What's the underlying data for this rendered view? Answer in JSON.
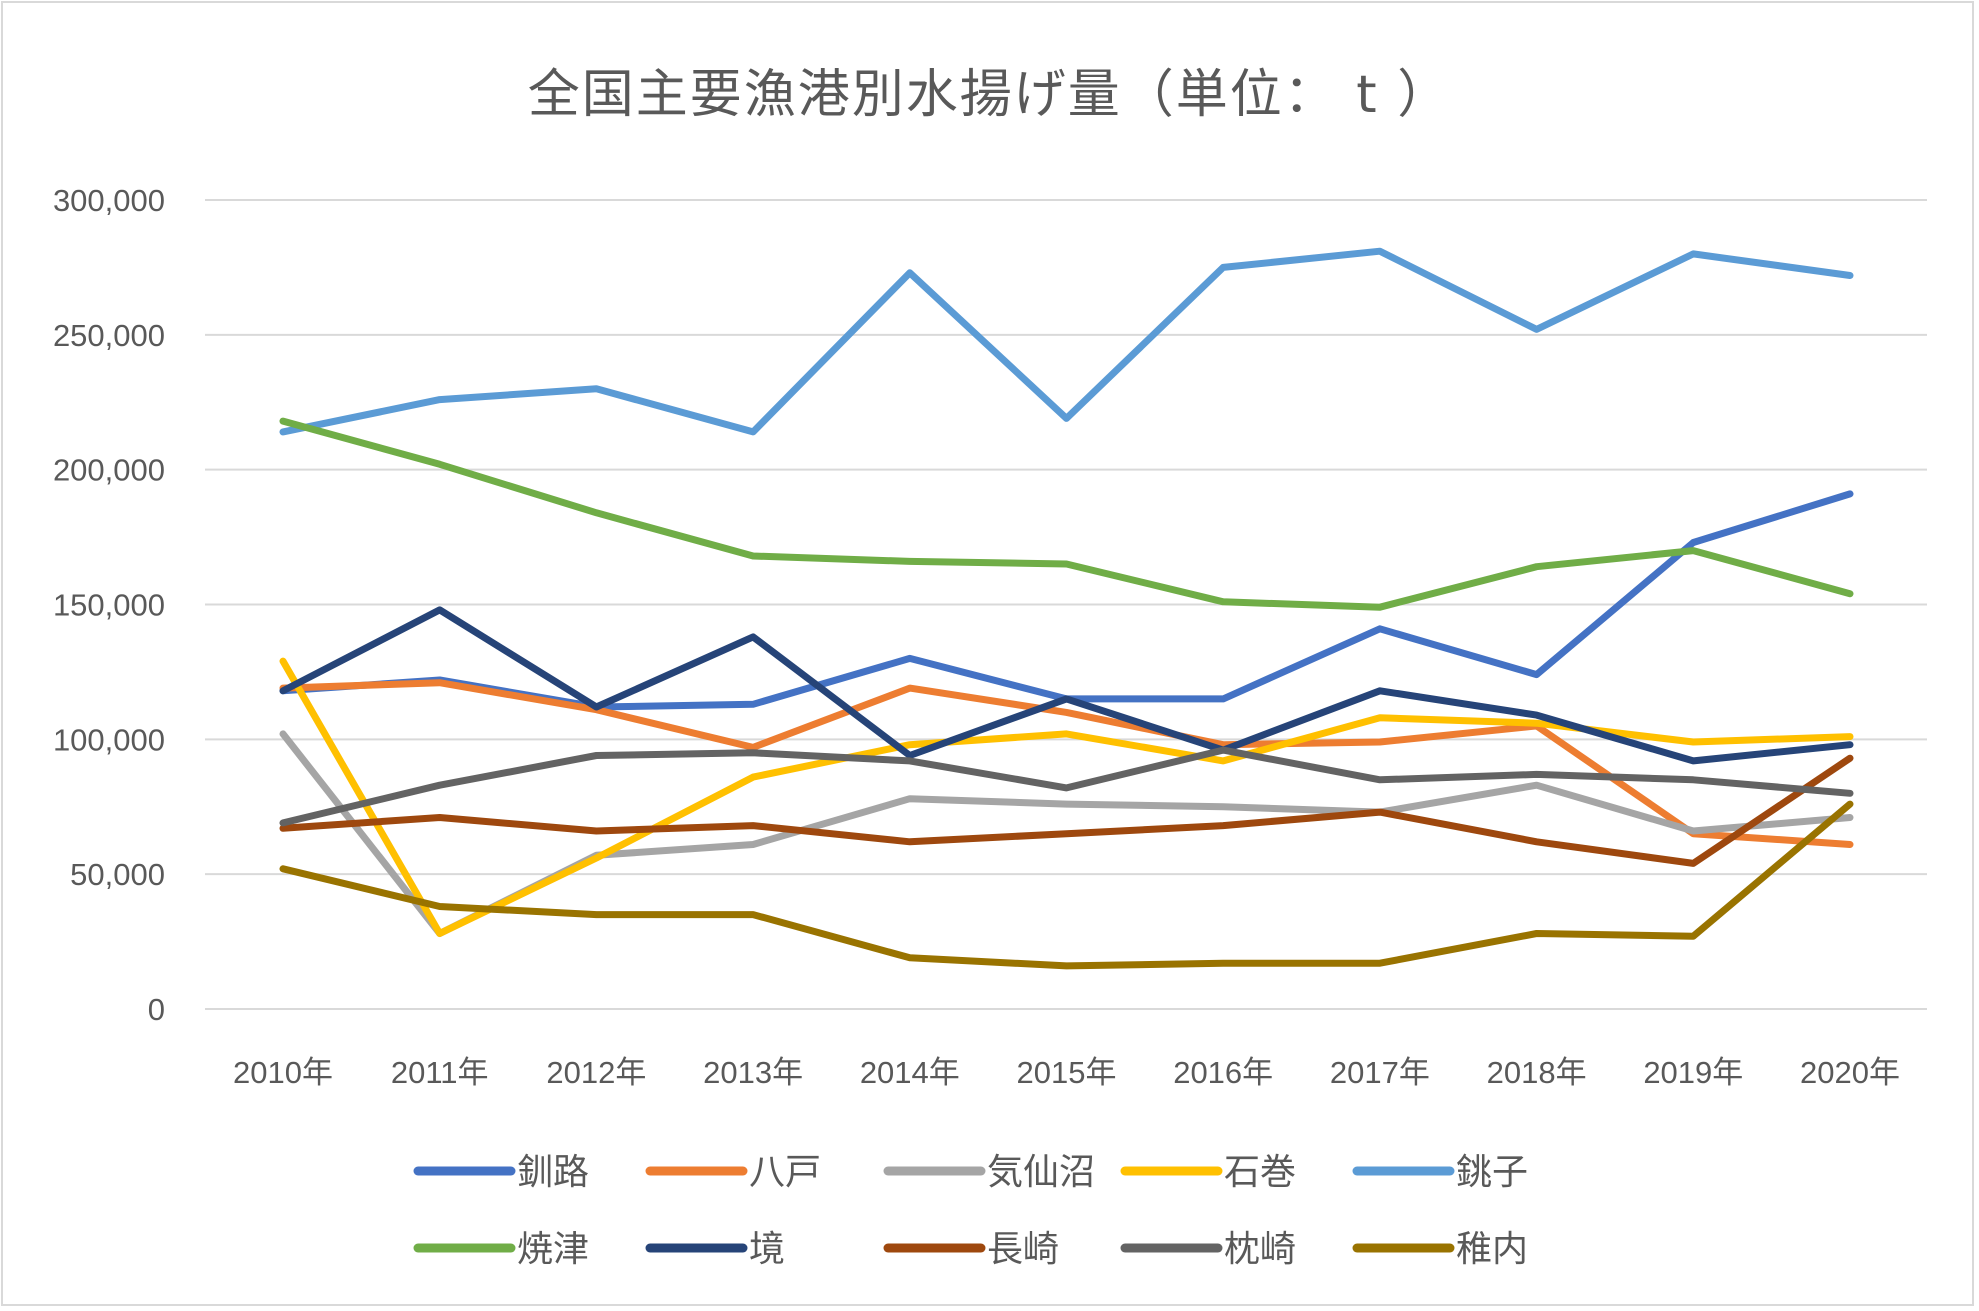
{
  "chart_data": {
    "type": "line",
    "title": "全国主要漁港別水揚げ量（単位： t ）",
    "xlabel": "",
    "ylabel": "",
    "categories": [
      "2010年",
      "2011年",
      "2012年",
      "2013年",
      "2014年",
      "2015年",
      "2016年",
      "2017年",
      "2018年",
      "2019年",
      "2020年"
    ],
    "ylim": [
      0,
      300000
    ],
    "yticks": [
      0,
      50000,
      100000,
      150000,
      200000,
      250000,
      300000
    ],
    "ytick_labels": [
      "0",
      "50,000",
      "100,000",
      "150,000",
      "200,000",
      "250,000",
      "300,000"
    ],
    "grid": true,
    "legend_position": "bottom",
    "series": [
      {
        "name": "釧路",
        "color": "#4472c4",
        "values": [
          118000,
          122000,
          112000,
          113000,
          130000,
          115000,
          115000,
          141000,
          124000,
          173000,
          191000
        ]
      },
      {
        "name": "八戸",
        "color": "#ed7d31",
        "values": [
          119000,
          121000,
          111000,
          97000,
          119000,
          110000,
          98000,
          99000,
          105000,
          65000,
          61000
        ]
      },
      {
        "name": "気仙沼",
        "color": "#a5a5a5",
        "values": [
          102000,
          28000,
          57000,
          61000,
          78000,
          76000,
          75000,
          73000,
          83000,
          66000,
          71000
        ]
      },
      {
        "name": "石巻",
        "color": "#ffc000",
        "values": [
          129000,
          28000,
          56000,
          86000,
          98000,
          102000,
          92000,
          108000,
          106000,
          99000,
          101000
        ]
      },
      {
        "name": "銚子",
        "color": "#5b9bd5",
        "values": [
          214000,
          226000,
          230000,
          214000,
          273000,
          219000,
          275000,
          281000,
          252000,
          280000,
          272000
        ]
      },
      {
        "name": "焼津",
        "color": "#70ad47",
        "values": [
          218000,
          202000,
          184000,
          168000,
          166000,
          165000,
          151000,
          149000,
          164000,
          170000,
          154000
        ]
      },
      {
        "name": "境",
        "color": "#264478",
        "values": [
          118000,
          148000,
          112000,
          138000,
          94000,
          115000,
          96000,
          118000,
          109000,
          92000,
          98000
        ]
      },
      {
        "name": "長崎",
        "color": "#9e480e",
        "values": [
          67000,
          71000,
          66000,
          68000,
          62000,
          65000,
          68000,
          73000,
          62000,
          54000,
          93000
        ]
      },
      {
        "name": "枕崎",
        "color": "#636363",
        "values": [
          69000,
          83000,
          94000,
          95000,
          92000,
          82000,
          96000,
          85000,
          87000,
          85000,
          80000
        ]
      },
      {
        "name": "稚内",
        "color": "#997300",
        "values": [
          52000,
          38000,
          35000,
          35000,
          19000,
          16000,
          17000,
          17000,
          28000,
          27000,
          76000
        ]
      }
    ]
  }
}
